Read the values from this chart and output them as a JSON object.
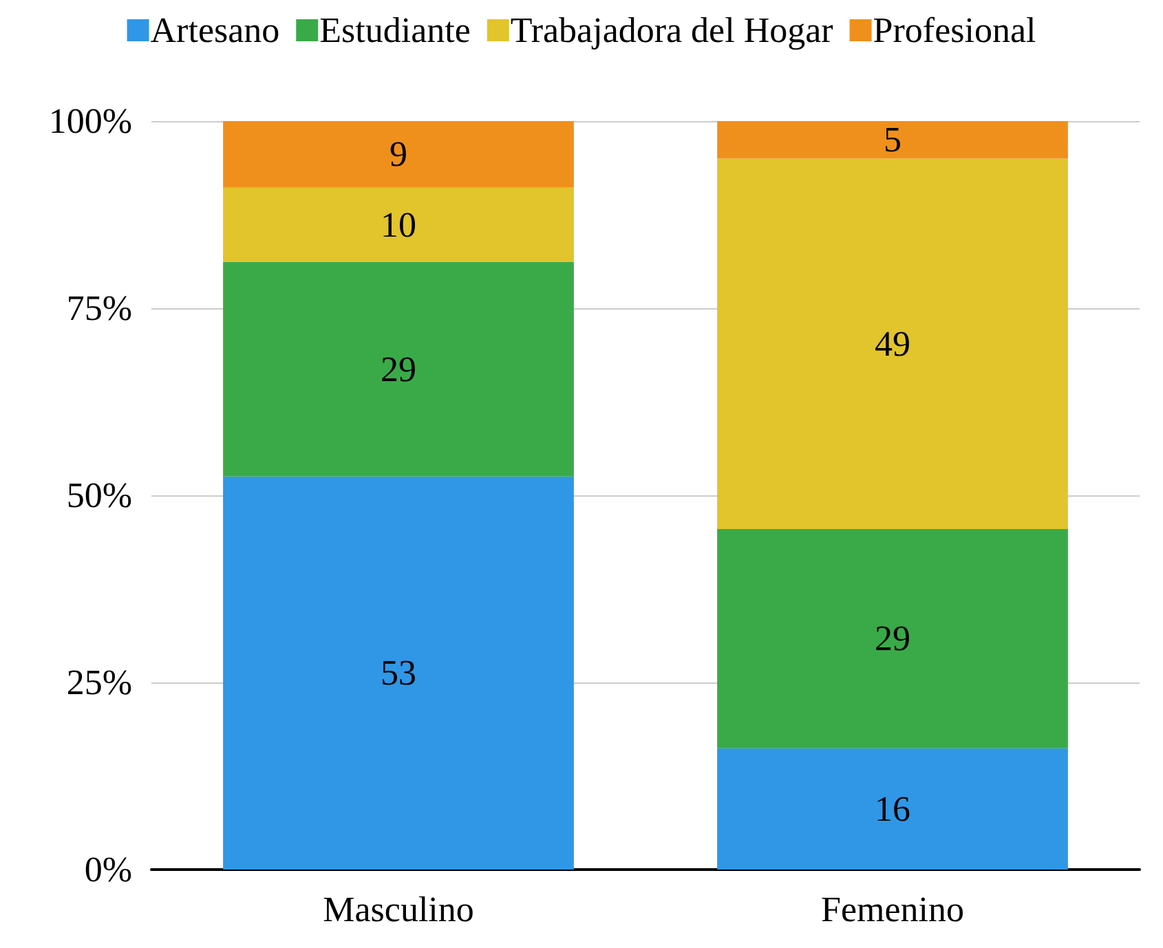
{
  "chart_data": {
    "type": "bar",
    "stacked": true,
    "categories": [
      "Masculino",
      "Femenino"
    ],
    "series": [
      {
        "name": "Artesano",
        "color": "#2f97e6",
        "values": [
          52.5,
          16.2
        ],
        "value_labels": [
          "53",
          "16"
        ]
      },
      {
        "name": "Estudiante",
        "color": "#3aaa48",
        "values": [
          28.7,
          29.3
        ],
        "value_labels": [
          "29",
          "29"
        ]
      },
      {
        "name": "Trabajadora del Hogar",
        "color": "#e2c42c",
        "values": [
          9.9,
          49.5
        ],
        "value_labels": [
          "10",
          "49"
        ]
      },
      {
        "name": "Profesional",
        "color": "#f0901c",
        "values": [
          8.9,
          5.0
        ],
        "value_labels": [
          "9",
          "5"
        ]
      }
    ],
    "ylim": [
      0,
      100
    ],
    "yticks": [
      {
        "value": 0,
        "label": "0%"
      },
      {
        "value": 25,
        "label": "25%"
      },
      {
        "value": 50,
        "label": "50%"
      },
      {
        "value": 75,
        "label": "75%"
      },
      {
        "value": 100,
        "label": "100%"
      }
    ],
    "grid": "y",
    "legend": "top"
  }
}
